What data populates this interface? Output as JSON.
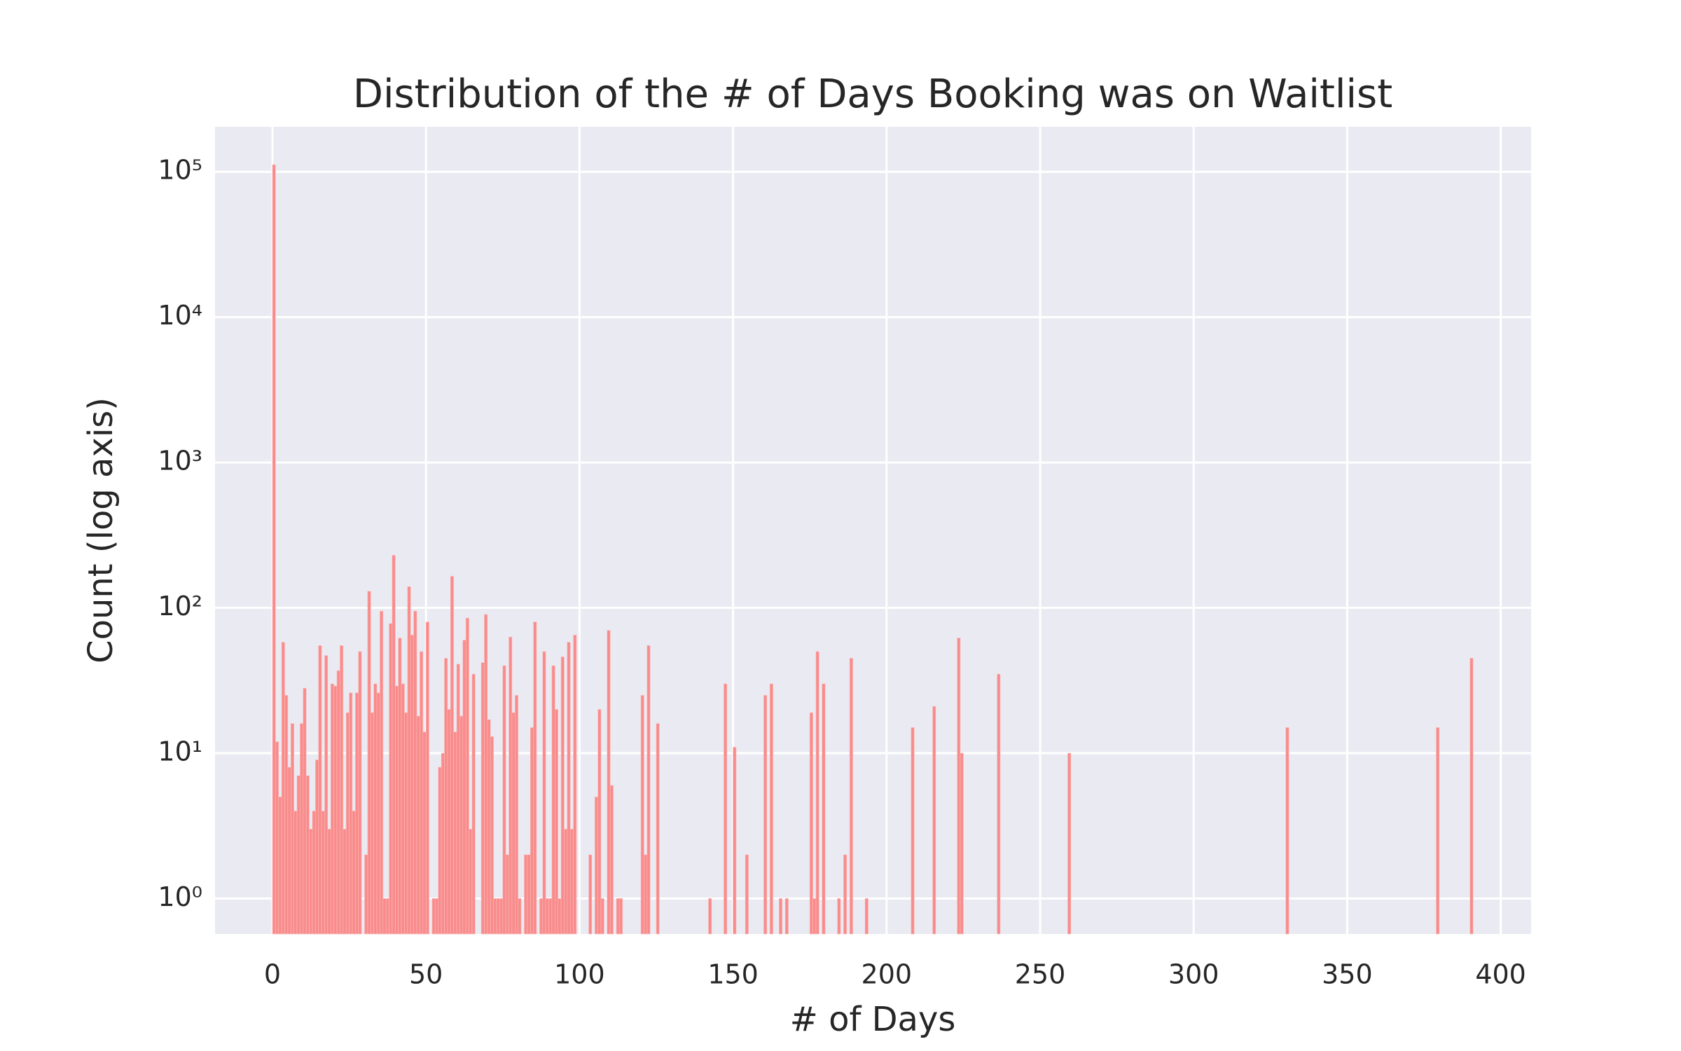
{
  "chart_data": {
    "type": "bar",
    "title": "Distribution of the # of Days Booking was on Waitlist",
    "x_label": "# of Days",
    "y_label": "Count (log axis)",
    "x": [
      0,
      1,
      2,
      3,
      4,
      5,
      6,
      7,
      8,
      9,
      10,
      11,
      12,
      13,
      14,
      15,
      16,
      17,
      18,
      19,
      20,
      21,
      22,
      23,
      24,
      25,
      26,
      27,
      28,
      30,
      31,
      32,
      33,
      34,
      35,
      36,
      37,
      38,
      39,
      40,
      41,
      42,
      43,
      44,
      45,
      46,
      47,
      48,
      49,
      50,
      52,
      53,
      54,
      55,
      56,
      57,
      58,
      59,
      60,
      61,
      62,
      63,
      64,
      65,
      68,
      69,
      70,
      71,
      72,
      73,
      74,
      75,
      76,
      77,
      78,
      79,
      80,
      82,
      83,
      84,
      85,
      87,
      88,
      89,
      90,
      91,
      92,
      93,
      94,
      95,
      96,
      97,
      98,
      103,
      105,
      106,
      107,
      109,
      110,
      112,
      113,
      120,
      121,
      122,
      125,
      142,
      147,
      150,
      154,
      160,
      162,
      165,
      167,
      175,
      176,
      177,
      179,
      184,
      186,
      188,
      193,
      208,
      215,
      223,
      224,
      236,
      259,
      330,
      379,
      390
    ],
    "values": [
      112000,
      12,
      5,
      58,
      25,
      8,
      16,
      4,
      7,
      16,
      28,
      7,
      3,
      4,
      9,
      55,
      4,
      47,
      3,
      30,
      29,
      37,
      55,
      3,
      19,
      26,
      4,
      26,
      50,
      2,
      130,
      19,
      30,
      26,
      95,
      1,
      1,
      78,
      230,
      29,
      62,
      30,
      19,
      140,
      65,
      95,
      18,
      50,
      14,
      80,
      1,
      1,
      8,
      10,
      45,
      20,
      165,
      14,
      41,
      18,
      60,
      85,
      3,
      35,
      42,
      90,
      17,
      13,
      1,
      1,
      1,
      40,
      2,
      63,
      19,
      25,
      1,
      2,
      2,
      15,
      80,
      1,
      50,
      1,
      1,
      40,
      20,
      1,
      46,
      3,
      58,
      3,
      65,
      2,
      5,
      20,
      1,
      70,
      6,
      1,
      1,
      25,
      2,
      55,
      16,
      1,
      30,
      11,
      2,
      25,
      30,
      1,
      1,
      19,
      1,
      50,
      30,
      1,
      2,
      45,
      1,
      15,
      21,
      62,
      10,
      35,
      10,
      15,
      15,
      45
    ],
    "color": "#f88c8c",
    "xlim": [
      -18.7,
      409.9
    ],
    "xticks": [
      0,
      50,
      100,
      150,
      200,
      250,
      300,
      350,
      400
    ],
    "ylim": [
      0.57,
      204000
    ],
    "log_y": true,
    "yticks": [
      {
        "value": 1,
        "label": "10⁰"
      },
      {
        "value": 10,
        "label": "10¹"
      },
      {
        "value": 100,
        "label": "10²"
      },
      {
        "value": 1000,
        "label": "10³"
      },
      {
        "value": 10000,
        "label": "10⁴"
      },
      {
        "value": 100000,
        "label": "10⁵"
      }
    ],
    "grid": true
  }
}
